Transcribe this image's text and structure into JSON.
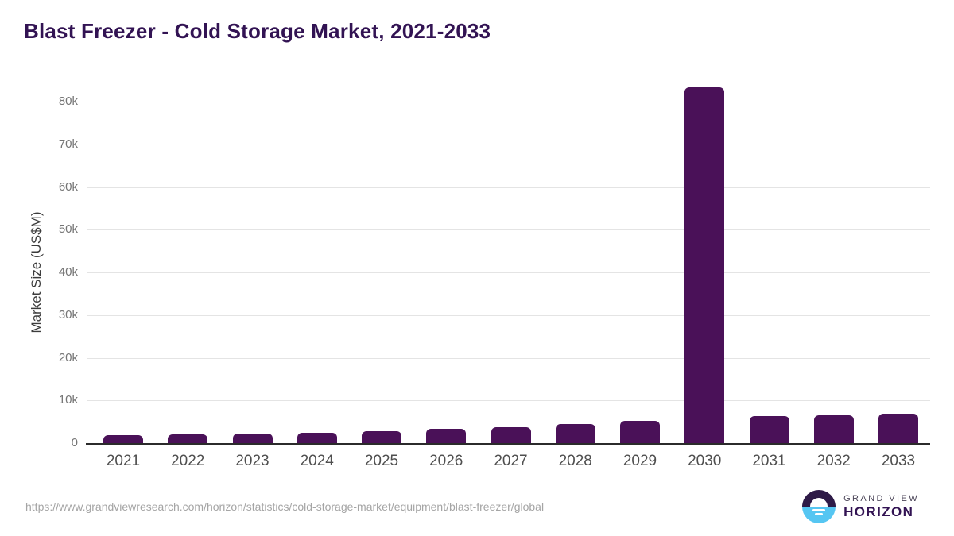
{
  "title": "Blast Freezer - Cold Storage Market, 2021-2033",
  "chart_data": {
    "type": "bar",
    "title": "Blast Freezer - Cold Storage Market, 2021-2033",
    "categories": [
      "2021",
      "2022",
      "2023",
      "2024",
      "2025",
      "2026",
      "2027",
      "2028",
      "2029",
      "2030",
      "2031",
      "2032",
      "2033"
    ],
    "values": [
      1800,
      2050,
      2300,
      2500,
      2850,
      3300,
      3650,
      4450,
      5200,
      83300,
      6300,
      6600,
      6800
    ],
    "xlabel": "",
    "ylabel": "Market Size (US$M)",
    "yticks": [
      0,
      10000,
      20000,
      30000,
      40000,
      50000,
      60000,
      70000,
      80000
    ],
    "ytick_labels": [
      "0",
      "10k",
      "20k",
      "30k",
      "40k",
      "50k",
      "60k",
      "70k",
      "80k"
    ],
    "ylim": [
      0,
      86000
    ],
    "grid": true,
    "legend": "none",
    "bar_color": "#4a1158"
  },
  "colors": {
    "title": "#321353",
    "bar": "#4a1158",
    "gridline": "#e4e4e4",
    "axis_line": "#2b2b2b",
    "ytick_text": "#757575",
    "xtick_text": "#4f4f4f",
    "footer_text": "#a5a5a5",
    "logo_dark": "#2e1a47",
    "logo_blue": "#56c6f2"
  },
  "footer": {
    "source_url": "https://www.grandviewresearch.com/horizon/statistics/cold-storage-market/equipment/blast-freezer/global",
    "logo": {
      "brand_top": "GRAND VIEW",
      "brand_bottom": "HORIZON",
      "mark": "sunrise-horizon-icon"
    }
  }
}
